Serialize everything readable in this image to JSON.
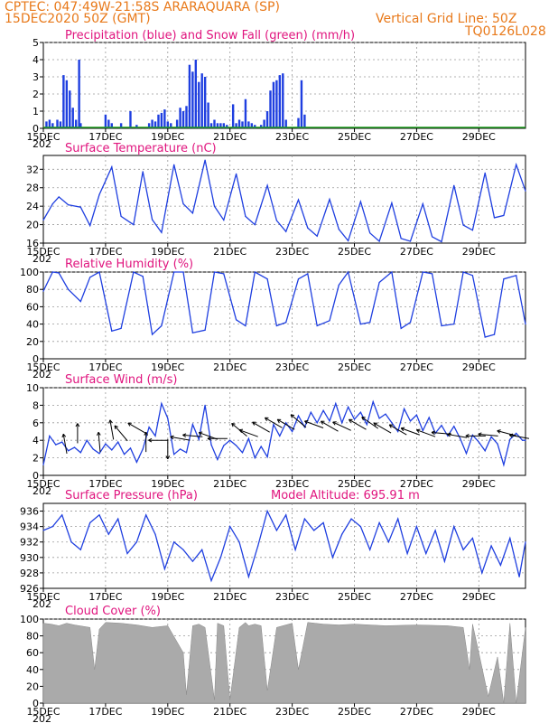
{
  "header": {
    "station": "CPTEC:   047:49W-21:58S   ARARAQUARA (SP)",
    "date": "15DEC2020 50Z (GMT)",
    "grid_note": "Vertical Grid Line: 50Z",
    "code": "TQ0126L028"
  },
  "x_ticks": [
    "15DEC",
    "17DEC",
    "19DEC",
    "21DEC",
    "23DEC",
    "25DEC",
    "27DEC",
    "29DEC"
  ],
  "year_fragment": "202",
  "colors": {
    "header": "#e8791a",
    "title": "#e0147e",
    "line": "#1f3fe0",
    "cloud": "#aaaaaa",
    "snow": "#1a9a1a",
    "arrow": "#000000"
  },
  "chart_data": [
    {
      "type": "bar",
      "title": "Precipitation (blue) and Snow Fall (green) (mm/h)",
      "ylim": [
        0,
        5
      ],
      "yticks": [
        "0",
        "1",
        "2",
        "3",
        "4",
        "5"
      ],
      "xlim_days": [
        0,
        15.5
      ],
      "series": [
        {
          "name": "Precipitation",
          "x": [
            0.1,
            0.2,
            0.3,
            0.45,
            0.55,
            0.65,
            0.75,
            0.85,
            0.95,
            1.05,
            1.15,
            1.2,
            2.0,
            2.1,
            2.2,
            2.5,
            2.8,
            3.0,
            3.4,
            3.5,
            3.6,
            3.7,
            3.8,
            3.9,
            4.0,
            4.1,
            4.3,
            4.4,
            4.5,
            4.6,
            4.7,
            4.8,
            4.9,
            5.0,
            5.1,
            5.2,
            5.3,
            5.4,
            5.5,
            5.6,
            5.7,
            5.8,
            5.9,
            6.1,
            6.2,
            6.3,
            6.4,
            6.5,
            6.6,
            6.7,
            6.8,
            7.0,
            7.1,
            7.2,
            7.3,
            7.4,
            7.5,
            7.6,
            7.7,
            7.8,
            8.2,
            8.3,
            8.4
          ],
          "values": [
            0.4,
            0.5,
            0.3,
            0.5,
            0.4,
            3.1,
            2.8,
            2.2,
            1.2,
            0.5,
            4.0,
            0.3,
            0.8,
            0.5,
            0.3,
            0.3,
            1.0,
            0.2,
            0.3,
            0.5,
            0.4,
            0.8,
            0.9,
            1.1,
            0.4,
            0.3,
            0.5,
            1.2,
            1.0,
            1.3,
            3.7,
            3.3,
            4.0,
            2.7,
            3.2,
            3.0,
            1.5,
            0.3,
            0.5,
            0.3,
            0.3,
            0.3,
            0.2,
            1.4,
            0.3,
            0.5,
            0.4,
            1.7,
            0.4,
            0.3,
            0.2,
            0.2,
            0.5,
            1.0,
            2.2,
            2.7,
            2.8,
            3.1,
            3.2,
            0.5,
            0.6,
            2.8,
            0.8
          ]
        },
        {
          "name": "Snow Fall",
          "x": [
            0,
            15.5
          ],
          "values": [
            0,
            0
          ]
        }
      ]
    },
    {
      "type": "line",
      "title": "Surface Temperature (nC)",
      "ylim": [
        16,
        35
      ],
      "yticks": [
        "16",
        "20",
        "24",
        "28",
        "32"
      ],
      "x": [
        0,
        0.3,
        0.5,
        0.8,
        1.2,
        1.5,
        1.8,
        2.2,
        2.5,
        2.9,
        3.2,
        3.5,
        3.8,
        4.2,
        4.5,
        4.8,
        5.2,
        5.5,
        5.8,
        6.2,
        6.5,
        6.8,
        7.2,
        7.5,
        7.8,
        8.2,
        8.5,
        8.8,
        9.2,
        9.5,
        9.8,
        10.2,
        10.5,
        10.8,
        11.2,
        11.5,
        11.8,
        12.2,
        12.5,
        12.8,
        13.2,
        13.5,
        13.8,
        14.2,
        14.5,
        14.8,
        15.2,
        15.5
      ],
      "values": [
        21,
        24.5,
        26,
        24.3,
        23.8,
        19.8,
        26.5,
        32.5,
        21.8,
        20,
        31.5,
        21.1,
        18.3,
        33,
        24.5,
        22.5,
        34,
        24,
        21,
        31,
        21.8,
        20,
        28.5,
        20.9,
        18.5,
        25.4,
        19.3,
        17.5,
        25.5,
        19,
        16.5,
        25,
        18.2,
        16.4,
        24.7,
        17,
        16.4,
        24.5,
        17.4,
        16.3,
        28.5,
        19.9,
        18.8,
        31.2,
        21.5,
        22,
        33,
        27.3
      ]
    },
    {
      "type": "line",
      "title": "Relative Humidity (%)",
      "ylim": [
        0,
        100
      ],
      "yticks": [
        "0",
        "20",
        "40",
        "60",
        "80",
        "100"
      ],
      "x": [
        0,
        0.3,
        0.5,
        0.8,
        1.2,
        1.5,
        1.8,
        2.2,
        2.5,
        2.9,
        3.2,
        3.5,
        3.8,
        4.2,
        4.5,
        4.8,
        5.2,
        5.5,
        5.8,
        6.2,
        6.5,
        6.8,
        7.2,
        7.5,
        7.8,
        8.2,
        8.5,
        8.8,
        9.2,
        9.5,
        9.8,
        10.2,
        10.5,
        10.8,
        11.2,
        11.5,
        11.8,
        12.2,
        12.5,
        12.8,
        13.2,
        13.5,
        13.8,
        14.2,
        14.5,
        14.8,
        15.2,
        15.5
      ],
      "values": [
        78,
        100,
        99,
        80,
        66,
        94,
        100,
        32,
        35,
        100,
        95,
        28,
        38,
        100,
        100,
        30,
        33,
        100,
        98,
        45,
        38,
        100,
        92,
        38,
        42,
        92,
        98,
        38,
        44,
        85,
        100,
        40,
        42,
        88,
        100,
        35,
        42,
        100,
        98,
        38,
        40,
        100,
        96,
        25,
        28,
        92,
        96,
        40
      ]
    },
    {
      "type": "line",
      "title": "Surface Wind (m/s)",
      "ylim": [
        0,
        10
      ],
      "yticks": [
        "0",
        "2",
        "4",
        "6",
        "8",
        "10"
      ],
      "x": [
        0,
        0.2,
        0.4,
        0.6,
        0.8,
        1.0,
        1.2,
        1.4,
        1.6,
        1.8,
        2.0,
        2.2,
        2.4,
        2.6,
        2.8,
        3.0,
        3.2,
        3.4,
        3.6,
        3.8,
        4.0,
        4.2,
        4.4,
        4.6,
        4.8,
        5.0,
        5.2,
        5.4,
        5.6,
        5.8,
        6.0,
        6.2,
        6.4,
        6.6,
        6.8,
        7.0,
        7.2,
        7.4,
        7.6,
        7.8,
        8.0,
        8.2,
        8.4,
        8.6,
        8.8,
        9.0,
        9.2,
        9.4,
        9.6,
        9.8,
        10.0,
        10.2,
        10.4,
        10.6,
        10.8,
        11.0,
        11.2,
        11.4,
        11.6,
        11.8,
        12.0,
        12.2,
        12.4,
        12.6,
        12.8,
        13.0,
        13.2,
        13.4,
        13.6,
        13.8,
        14.0,
        14.2,
        14.4,
        14.6,
        14.8,
        15.0,
        15.2,
        15.4,
        15.5
      ],
      "values": [
        1.2,
        4.5,
        3.5,
        3.8,
        2.8,
        3.2,
        2.6,
        4.0,
        3.0,
        2.5,
        3.6,
        2.9,
        3.8,
        2.4,
        3.1,
        1.5,
        3.0,
        5.5,
        4.5,
        8.2,
        6.5,
        2.4,
        3.0,
        2.6,
        5.8,
        4.1,
        8.0,
        3.5,
        1.8,
        3.4,
        4.0,
        3.4,
        2.6,
        4.2,
        2.0,
        3.3,
        2.1,
        5.8,
        4.5,
        6.0,
        5.0,
        6.8,
        5.5,
        7.2,
        6.0,
        7.4,
        6.2,
        8.2,
        6.0,
        7.8,
        6.4,
        7.2,
        5.8,
        8.4,
        6.5,
        7.0,
        6.0,
        5.0,
        7.6,
        6.2,
        6.9,
        5.1,
        6.6,
        4.8,
        5.7,
        4.5,
        5.6,
        4.2,
        2.5,
        4.6,
        3.8,
        2.8,
        4.4,
        3.6,
        1.2,
        4.1,
        4.8,
        4.0,
        4.0
      ]
    },
    {
      "type": "line",
      "title": "Surface Pressure (hPa)",
      "annotation": "Model Altitude: 695.91  m",
      "ylim": [
        926,
        937
      ],
      "yticks": [
        "926",
        "928",
        "930",
        "932",
        "934",
        "936"
      ],
      "x": [
        0,
        0.3,
        0.6,
        0.9,
        1.2,
        1.5,
        1.8,
        2.1,
        2.4,
        2.7,
        3.0,
        3.3,
        3.6,
        3.9,
        4.2,
        4.5,
        4.8,
        5.1,
        5.4,
        5.7,
        6.0,
        6.3,
        6.6,
        6.9,
        7.2,
        7.5,
        7.8,
        8.1,
        8.4,
        8.7,
        9.0,
        9.3,
        9.6,
        9.9,
        10.2,
        10.5,
        10.8,
        11.1,
        11.4,
        11.7,
        12.0,
        12.3,
        12.6,
        12.9,
        13.2,
        13.5,
        13.8,
        14.1,
        14.4,
        14.7,
        15.0,
        15.3,
        15.5
      ],
      "values": [
        933.5,
        934,
        935.5,
        932,
        931,
        934.5,
        935.5,
        933,
        935,
        930.5,
        932,
        935.5,
        933,
        928.5,
        932,
        931,
        929.5,
        931,
        927,
        930,
        934,
        932,
        927.5,
        931.5,
        936,
        933.5,
        935.5,
        931,
        935,
        933.5,
        934.5,
        930,
        933,
        935,
        934,
        931,
        934.5,
        932,
        935,
        930.5,
        934,
        930.5,
        933.5,
        929.5,
        934,
        931,
        932.5,
        928,
        931.5,
        929,
        932.5,
        927.5,
        932
      ]
    },
    {
      "type": "area",
      "title": "Cloud Cover (%)",
      "ylim": [
        0,
        100
      ],
      "yticks": [
        "0",
        "20",
        "40",
        "60",
        "80",
        "100"
      ],
      "x": [
        0,
        0.25,
        0.5,
        0.75,
        1.0,
        1.5,
        1.65,
        1.8,
        2.0,
        2.5,
        3.0,
        3.5,
        4.0,
        4.5,
        4.6,
        4.8,
        5.0,
        5.2,
        5.5,
        5.6,
        5.8,
        6.0,
        6.3,
        6.5,
        6.6,
        6.8,
        7.0,
        7.2,
        7.5,
        8.0,
        8.2,
        8.5,
        9.0,
        9.5,
        10.0,
        11.0,
        12.0,
        13.0,
        13.5,
        13.7,
        13.8,
        14.0,
        14.3,
        14.6,
        14.8,
        15.0,
        15.2,
        15.5
      ],
      "values": [
        95,
        94,
        92,
        95,
        93,
        90,
        40,
        88,
        96,
        95,
        93,
        90,
        92,
        60,
        10,
        92,
        94,
        90,
        4,
        95,
        92,
        4,
        90,
        96,
        92,
        94,
        92,
        15,
        90,
        95,
        40,
        96,
        94,
        93,
        94,
        92,
        93,
        92,
        90,
        40,
        94,
        60,
        8,
        55,
        0,
        95,
        0,
        90
      ]
    }
  ],
  "wind_arrows": [
    {
      "x": 0.7,
      "y": 3.6,
      "dir": -100
    },
    {
      "x": 1.1,
      "y": 4.8,
      "dir": -90
    },
    {
      "x": 1.8,
      "y": 3.8,
      "dir": -95
    },
    {
      "x": 2.2,
      "y": 5.2,
      "dir": -100
    },
    {
      "x": 2.5,
      "y": 4.8,
      "dir": -130
    },
    {
      "x": 3.0,
      "y": 5.4,
      "dir": -150
    },
    {
      "x": 3.3,
      "y": 3.8,
      "dir": -90
    },
    {
      "x": 3.7,
      "y": 4.0,
      "dir": 180
    },
    {
      "x": 4.0,
      "y": 3.0,
      "dir": 90
    },
    {
      "x": 4.4,
      "y": 4.2,
      "dir": -170
    },
    {
      "x": 4.8,
      "y": 4.5,
      "dir": -175
    },
    {
      "x": 5.3,
      "y": 4.5,
      "dir": -160
    },
    {
      "x": 5.6,
      "y": 4.2,
      "dir": -180
    },
    {
      "x": 6.3,
      "y": 5.2,
      "dir": -140
    },
    {
      "x": 6.6,
      "y": 4.8,
      "dir": -160
    },
    {
      "x": 7.0,
      "y": 5.5,
      "dir": -150
    },
    {
      "x": 7.4,
      "y": 6.0,
      "dir": -150
    },
    {
      "x": 7.8,
      "y": 5.8,
      "dir": -150
    },
    {
      "x": 8.2,
      "y": 6.2,
      "dir": -140
    },
    {
      "x": 8.7,
      "y": 5.8,
      "dir": -160
    },
    {
      "x": 9.2,
      "y": 5.6,
      "dir": -150
    },
    {
      "x": 9.6,
      "y": 5.6,
      "dir": -155
    },
    {
      "x": 10.1,
      "y": 5.8,
      "dir": -150
    },
    {
      "x": 10.5,
      "y": 6.0,
      "dir": -145
    },
    {
      "x": 10.9,
      "y": 5.4,
      "dir": -150
    },
    {
      "x": 11.4,
      "y": 5.2,
      "dir": -150
    },
    {
      "x": 11.8,
      "y": 5.0,
      "dir": -160
    },
    {
      "x": 12.3,
      "y": 4.8,
      "dir": -160
    },
    {
      "x": 12.8,
      "y": 4.8,
      "dir": -175
    },
    {
      "x": 13.3,
      "y": 4.5,
      "dir": -170
    },
    {
      "x": 13.9,
      "y": 4.5,
      "dir": 180
    },
    {
      "x": 14.3,
      "y": 4.6,
      "dir": -175
    },
    {
      "x": 14.9,
      "y": 4.8,
      "dir": -165
    },
    {
      "x": 15.3,
      "y": 4.4,
      "dir": -170
    }
  ]
}
